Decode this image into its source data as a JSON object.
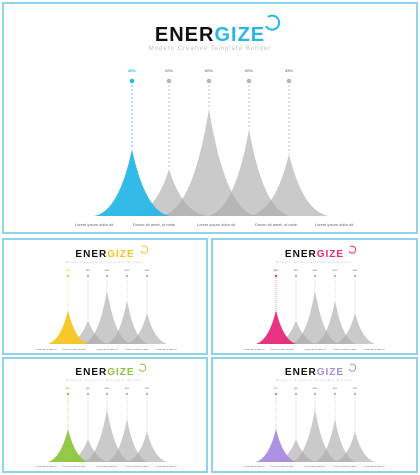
{
  "title_part1": "ENER",
  "title_part2": "GIZE",
  "subtitle": "Modern Creative Template Builder",
  "colors": {
    "gray": "#a9a9a9",
    "border": "#8fd3ea",
    "text": "#111111",
    "label": "#666666"
  },
  "chart_data": {
    "type": "area",
    "series": [
      {
        "value_label": "40%",
        "height_pct": 40
      },
      {
        "value_label": "20%",
        "height_pct": 20
      },
      {
        "value_label": "80%",
        "height_pct": 80
      },
      {
        "value_label": "60%",
        "height_pct": 60
      },
      {
        "value_label": "35%",
        "height_pct": 35
      }
    ],
    "bottom_labels": [
      "Lorem ipsum dolor sit",
      "Donec sit amet, ut mole",
      "Lorem ipsum dolor sit",
      "Donec sit amet, ut mole",
      "Lorem ipsum dolor sit"
    ]
  },
  "panels": [
    {
      "id": "main",
      "accent": "#29b6e8"
    },
    {
      "id": "yellow",
      "accent": "#f7c51e"
    },
    {
      "id": "pink",
      "accent": "#e6287b"
    },
    {
      "id": "green",
      "accent": "#8cc63f"
    },
    {
      "id": "purple",
      "accent": "#a98be0"
    }
  ]
}
